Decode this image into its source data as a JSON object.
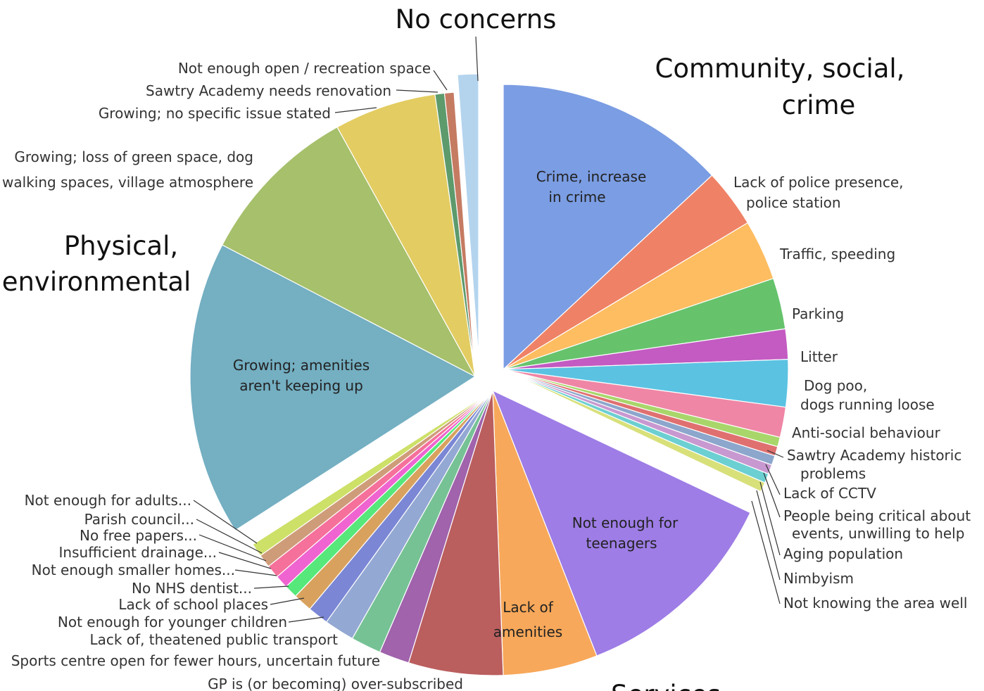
{
  "chart_data": {
    "type": "pie",
    "title": "",
    "groups": [
      {
        "name": "Community, social, crime",
        "label_lines": [
          "Community, social,",
          "crime"
        ]
      },
      {
        "name": "Services",
        "label_lines": [
          "Services"
        ]
      },
      {
        "name": "Physical, environmental",
        "label_lines": [
          "Physical,",
          "environmental"
        ]
      },
      {
        "name": "No concerns",
        "label_lines": [
          "No concerns"
        ]
      }
    ],
    "slices": [
      {
        "label": "Crime, increase in crime",
        "label_lines": [
          "Crime, increase",
          "in crime"
        ],
        "value": 12.2,
        "color": "#7b9de3",
        "group": "Community, social, crime",
        "label_inside": true
      },
      {
        "label": "Lack of police presence, police station",
        "label_lines": [
          "Lack of police presence,",
          "police station"
        ],
        "value": 3.1,
        "color": "#ef8266",
        "group": "Community, social, crime"
      },
      {
        "label": "Traffic, speeding",
        "label_lines": [
          "Traffic, speeding"
        ],
        "value": 3.2,
        "color": "#fdbd60",
        "group": "Community, social, crime"
      },
      {
        "label": "Parking",
        "label_lines": [
          "Parking"
        ],
        "value": 2.7,
        "color": "#66c36c",
        "group": "Community, social, crime"
      },
      {
        "label": "Litter",
        "label_lines": [
          "Litter"
        ],
        "value": 1.6,
        "color": "#c35bc2",
        "group": "Community, social, crime"
      },
      {
        "label": "Dog poo, dogs running loose",
        "label_lines": [
          "Dog poo,",
          "dogs running loose"
        ],
        "value": 2.5,
        "color": "#5bc2e2",
        "group": "Community, social, crime"
      },
      {
        "label": "Anti-social behaviour",
        "label_lines": [
          "Anti-social behaviour"
        ],
        "value": 1.6,
        "color": "#ef86a5",
        "group": "Community, social, crime"
      },
      {
        "label": "Sawtry Academy historic problems",
        "label_lines": [
          "Sawtry Academy historic",
          "problems"
        ],
        "value": 0.5,
        "color": "#a8d66a",
        "group": "Community, social, crime"
      },
      {
        "label": "Lack of CCTV",
        "label_lines": [
          "Lack of CCTV"
        ],
        "value": 0.5,
        "color": "#e07070",
        "group": "Community, social, crime"
      },
      {
        "label": "People being critical about events, unwilling to help",
        "label_lines": [
          "People being critical about",
          "events, unwilling to help"
        ],
        "value": 0.5,
        "color": "#8ca6cc",
        "group": "Community, social, crime"
      },
      {
        "label": "Aging population",
        "label_lines": [
          "Aging population"
        ],
        "value": 0.5,
        "color": "#c898d0",
        "group": "Community, social, crime"
      },
      {
        "label": "Nimbyism",
        "label_lines": [
          "Nimbyism"
        ],
        "value": 0.5,
        "color": "#6ccfd2",
        "group": "Community, social, crime"
      },
      {
        "label": "Not knowing the area well",
        "label_lines": [
          "Not knowing the area well"
        ],
        "value": 0.5,
        "color": "#d8e07a",
        "group": "Community, social, crime"
      },
      {
        "label": "Not enough for teenagers",
        "label_lines": [
          "Not enough for",
          "teenagers"
        ],
        "value": 11.2,
        "color": "#9e7de6",
        "group": "Services",
        "label_inside": true
      },
      {
        "label": "Lack of amenities",
        "label_lines": [
          "Lack of",
          "amenities"
        ],
        "value": 5.0,
        "color": "#f7a85a",
        "group": "Services",
        "label_inside": true
      },
      {
        "label": "GP is (or becoming) over-subscribed",
        "label_lines": [
          "GP is (or becoming) over-subscribed"
        ],
        "value": 5.0,
        "color": "#bb5e5e",
        "group": "Services"
      },
      {
        "label": "Sports centre open for fewer hours, uncertain future",
        "label_lines": [
          "Sports centre open for fewer hours, uncertain future"
        ],
        "value": 1.6,
        "color": "#a063ac",
        "group": "Services"
      },
      {
        "label": "Lack of, theatened public transport",
        "label_lines": [
          "Lack of, theatened public transport"
        ],
        "value": 1.6,
        "color": "#76c295",
        "group": "Services"
      },
      {
        "label": "Not enough for younger children",
        "label_lines": [
          "Not enough for younger children"
        ],
        "value": 1.6,
        "color": "#93a8d3",
        "group": "Services"
      },
      {
        "label": "Lack of school places",
        "label_lines": [
          "Lack of school places"
        ],
        "value": 1.1,
        "color": "#7b87d5",
        "group": "Services"
      },
      {
        "label": "No NHS dentist...",
        "label_lines": [
          "No NHS dentist..."
        ],
        "value": 1.0,
        "color": "#d8a25e",
        "group": "Services"
      },
      {
        "label": "Not enough smaller homes...",
        "label_lines": [
          "Not enough smaller homes..."
        ],
        "value": 0.7,
        "color": "#56e87a",
        "group": "Services"
      },
      {
        "label": "Insufficient drainage...",
        "label_lines": [
          "Insufficient drainage..."
        ],
        "value": 0.7,
        "color": "#ef64d0",
        "group": "Services"
      },
      {
        "label": "No free papers...",
        "label_lines": [
          "No free papers..."
        ],
        "value": 0.7,
        "color": "#f5709a",
        "group": "Services"
      },
      {
        "label": "Parish council...",
        "label_lines": [
          "Parish council..."
        ],
        "value": 0.7,
        "color": "#cf9c7a",
        "group": "Services"
      },
      {
        "label": "Not enough for adults...",
        "label_lines": [
          "Not enough for adults..."
        ],
        "value": 0.7,
        "color": "#cde068",
        "group": "Services"
      },
      {
        "label": "Growing; amenities aren't keeping up",
        "label_lines": [
          "Growing; amenities",
          "aren't keeping up"
        ],
        "value": 15.6,
        "color": "#74afc2",
        "group": "Physical, environmental",
        "label_inside": true
      },
      {
        "label": "Growing; loss of green space, dog walking spaces, village atmosphere",
        "label_lines": [
          "Growing; loss of green space, dog",
          "walking spaces, village atmosphere"
        ],
        "value": 8.7,
        "color": "#a6c06b",
        "group": "Physical, environmental"
      },
      {
        "label": "Growing; no specific issue stated",
        "label_lines": [
          "Growing; no specific issue stated"
        ],
        "value": 5.4,
        "color": "#e3cc61",
        "group": "Physical, environmental"
      },
      {
        "label": "Sawtry Academy needs renovation",
        "label_lines": [
          "Sawtry Academy needs renovation"
        ],
        "value": 0.5,
        "color": "#5d9a6c",
        "group": "Physical, environmental"
      },
      {
        "label": "Not enough open / recreation space",
        "label_lines": [
          "Not enough open / recreation space"
        ],
        "value": 0.5,
        "color": "#c57b62",
        "group": "Physical, environmental"
      },
      {
        "label": "No concerns",
        "label_lines": [],
        "value": 1.1,
        "color": "#b4d4ee",
        "group": "No concerns"
      }
    ]
  }
}
